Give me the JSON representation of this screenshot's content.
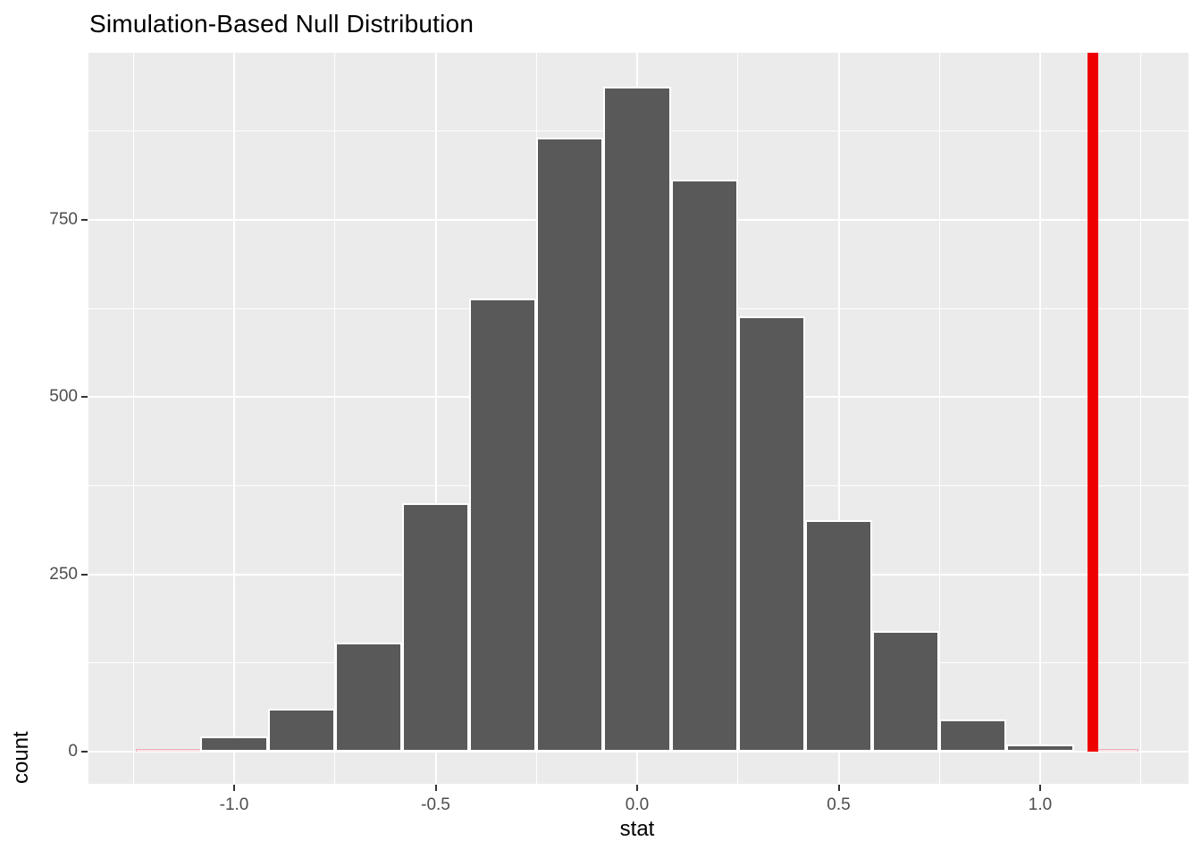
{
  "figure": {
    "title": "Simulation-Based Null Distribution"
  },
  "chart_data": {
    "type": "histogram",
    "title": "Simulation-Based Null Distribution",
    "xlabel": "stat",
    "ylabel": "count",
    "legend": "none",
    "grid": true,
    "panel_bg": "#EBEBEB",
    "xlim": [
      -1.36,
      1.37
    ],
    "ylim": [
      -45,
      986
    ],
    "x_ticks": [
      {
        "value": -1.0,
        "label": "-1.0"
      },
      {
        "value": -0.5,
        "label": "-0.5"
      },
      {
        "value": 0.0,
        "label": "0.0"
      },
      {
        "value": 0.5,
        "label": "0.5"
      },
      {
        "value": 1.0,
        "label": "1.0"
      }
    ],
    "y_ticks": [
      {
        "value": 0,
        "label": "0"
      },
      {
        "value": 250,
        "label": "250"
      },
      {
        "value": 500,
        "label": "500"
      },
      {
        "value": 750,
        "label": "750"
      }
    ],
    "x_minor_gridlines": [
      -1.25,
      -0.75,
      -0.25,
      0.25,
      0.75,
      1.25
    ],
    "y_minor_gridlines": [
      125,
      375,
      625,
      875
    ],
    "binwidth": 0.1667,
    "bins": [
      {
        "center": -1.0,
        "count": 21
      },
      {
        "center": -0.8333,
        "count": 60
      },
      {
        "center": -0.6667,
        "count": 154
      },
      {
        "center": -0.5,
        "count": 351
      },
      {
        "center": -0.3333,
        "count": 639
      },
      {
        "center": -0.1667,
        "count": 866
      },
      {
        "center": 0.0,
        "count": 938
      },
      {
        "center": 0.1667,
        "count": 807
      },
      {
        "center": 0.3333,
        "count": 614
      },
      {
        "center": 0.5,
        "count": 327
      },
      {
        "center": 0.6667,
        "count": 170
      },
      {
        "center": 0.8333,
        "count": 45
      },
      {
        "center": 1.0,
        "count": 10
      }
    ],
    "shaded_bins": [
      {
        "center": -1.1667,
        "count": 2
      },
      {
        "center": 1.1667,
        "count": 2
      }
    ],
    "p_value_shading": {
      "left_tail_end": -1.063,
      "right_tail_start": 1.142,
      "fill": "#FAE3E7",
      "border": "#EDAEBA",
      "sliver_color": "#D49BA8",
      "sliver_count": 21
    },
    "observed_stat": 1.13,
    "colors": {
      "bar_fill": "#595959",
      "bar_border": "#FFFFFF",
      "gridline": "#FFFFFF",
      "red_line": "#EE0000",
      "axis_text": "#4D4D4D",
      "title_text": "#000000"
    }
  }
}
